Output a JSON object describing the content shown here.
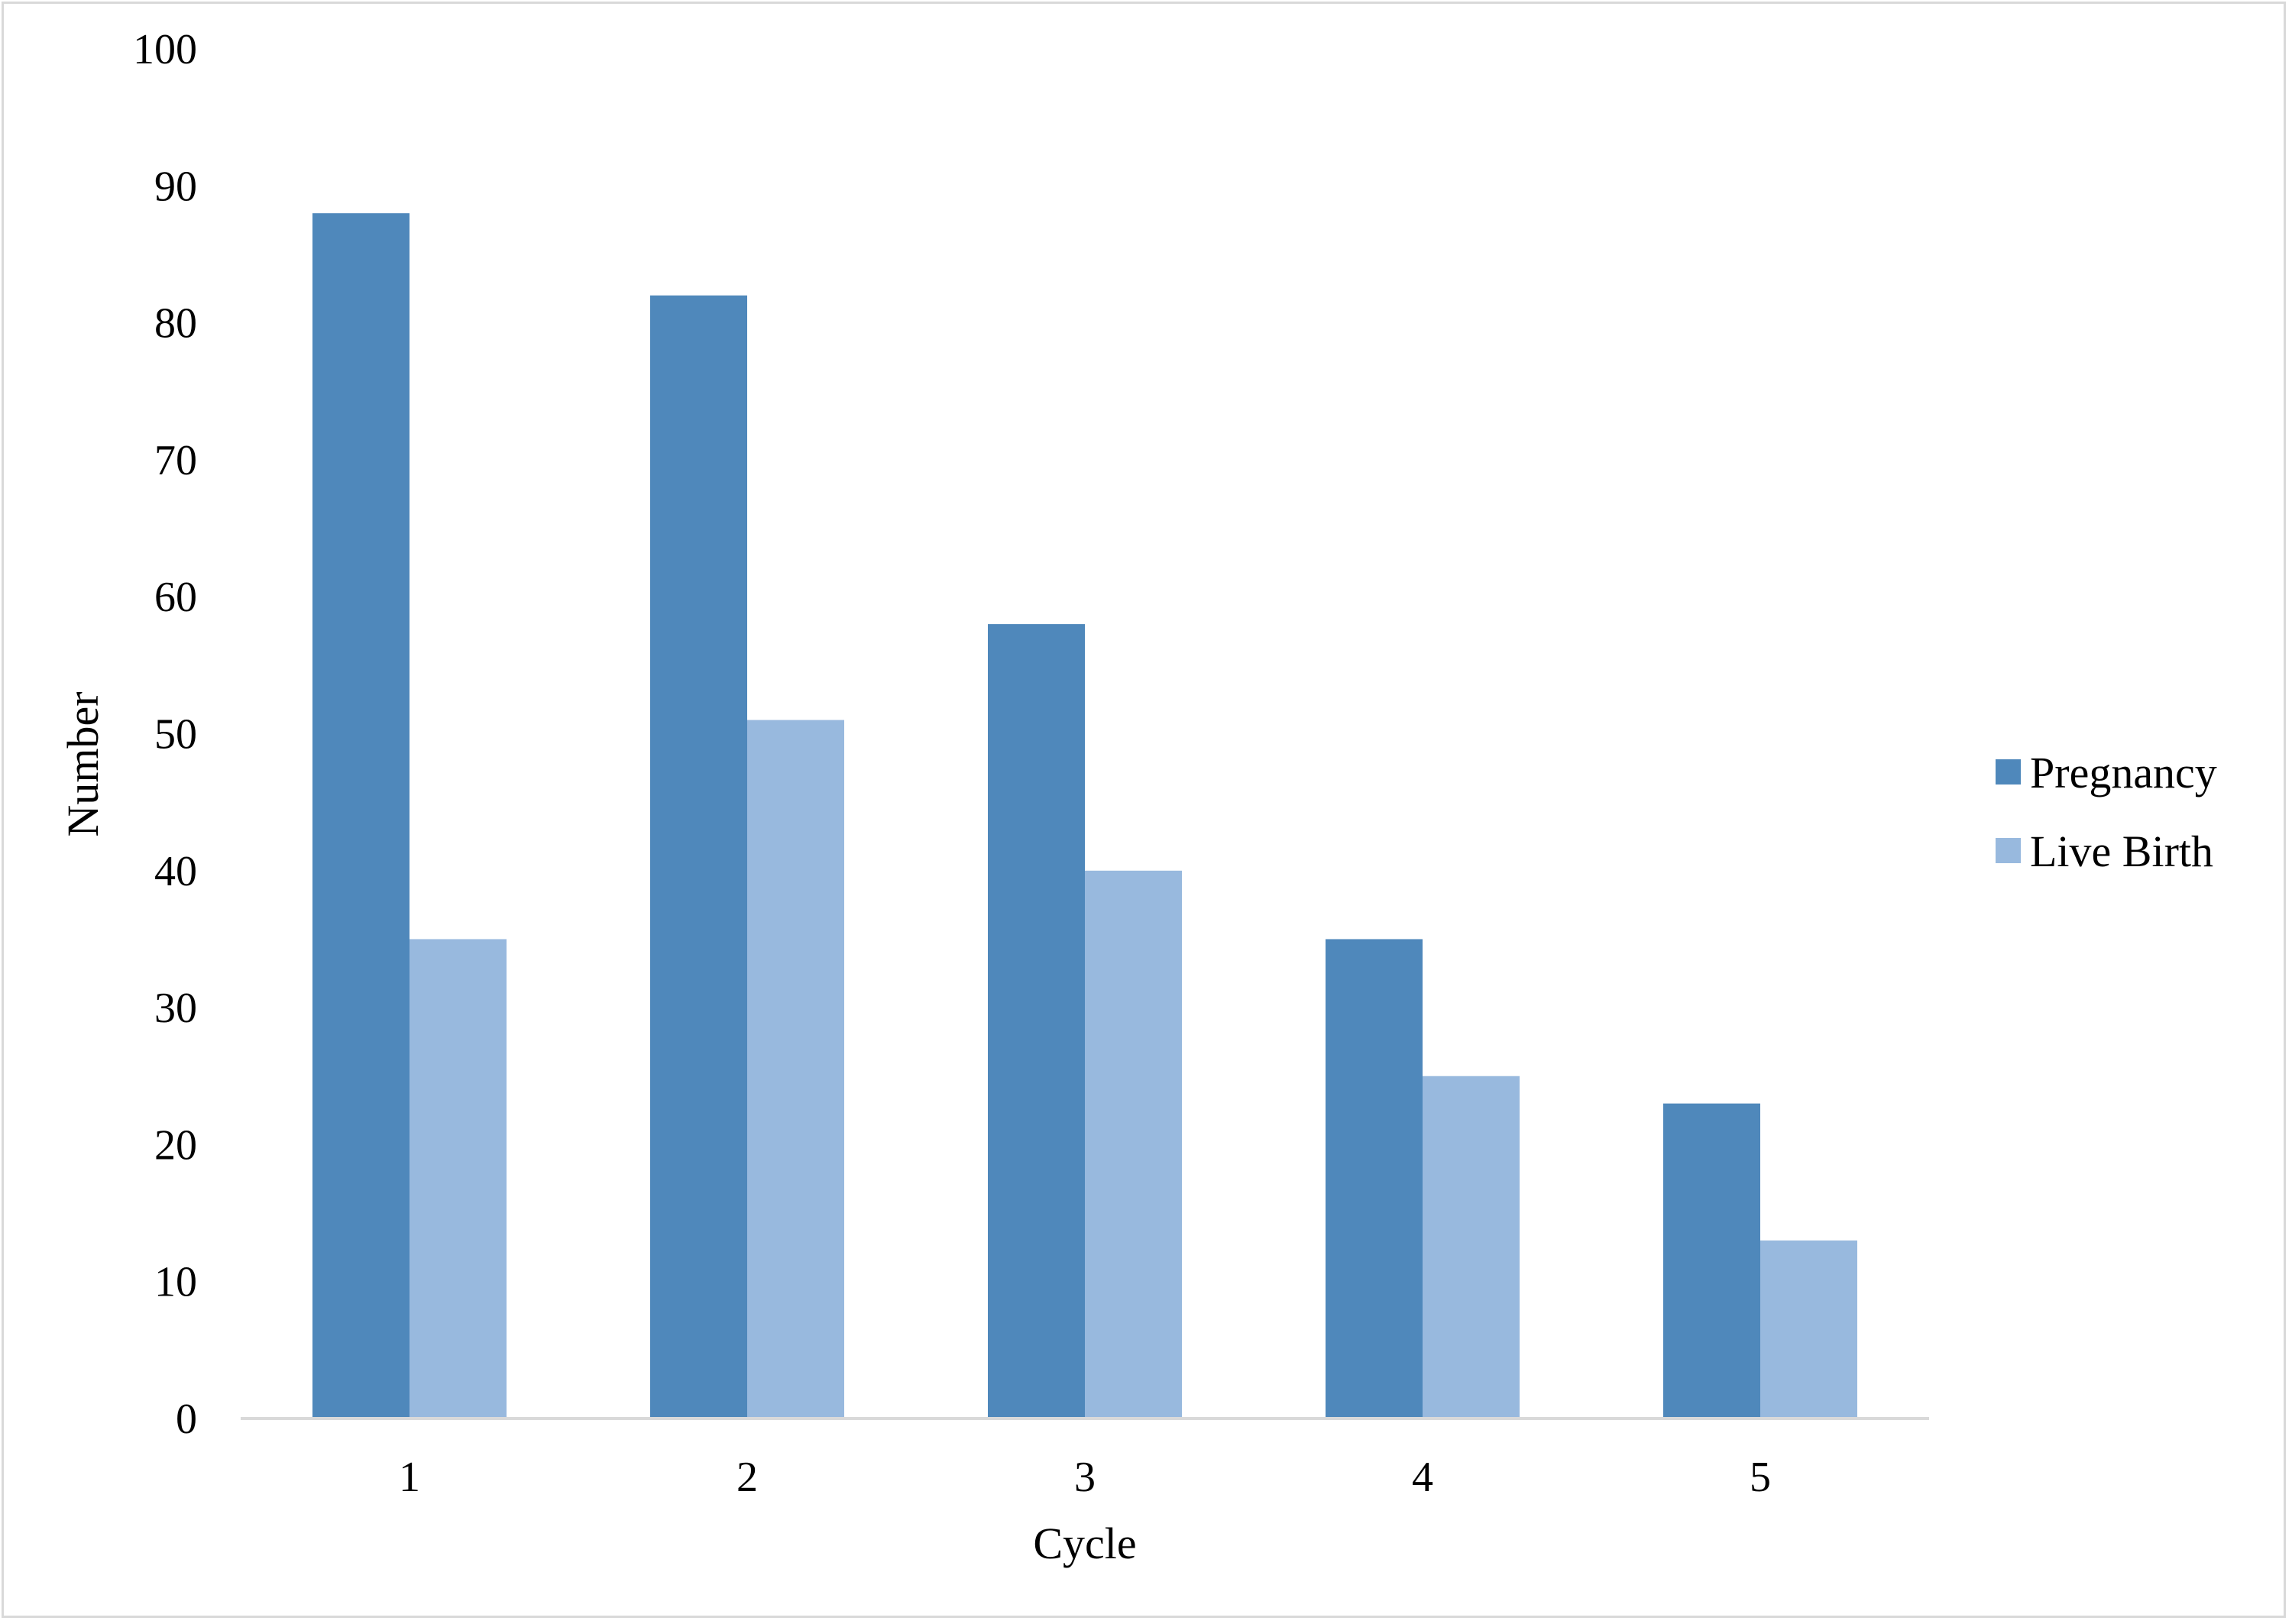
{
  "chart_data": {
    "type": "bar",
    "categories": [
      "1",
      "2",
      "3",
      "4",
      "5"
    ],
    "series": [
      {
        "name": "Pregnancy",
        "values": [
          88,
          82,
          58,
          35,
          23
        ],
        "color": "#4f88bb"
      },
      {
        "name": "Live Birth",
        "values": [
          35,
          51,
          40,
          25,
          13
        ],
        "color": "#98b9de"
      }
    ],
    "xlabel": "Cycle",
    "ylabel": "Number",
    "ylim": [
      0,
      100
    ],
    "yticks": [
      "0",
      "10",
      "20",
      "30",
      "40",
      "50",
      "60",
      "70",
      "80",
      "90",
      "100"
    ],
    "grid": false,
    "legend_position": "right"
  }
}
